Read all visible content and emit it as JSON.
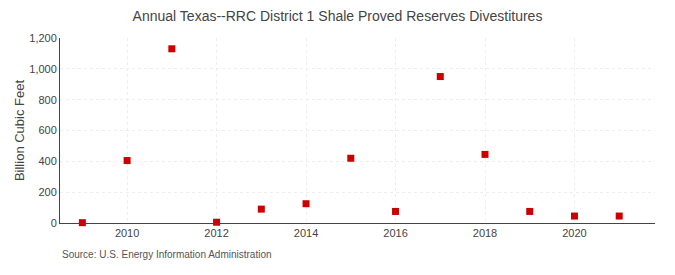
{
  "chart_data": {
    "type": "scatter",
    "title": "Annual Texas--RRC District 1 Shale Proved Reserves Divestitures",
    "ylabel": "Billion Cubic Feet",
    "annotations": [
      "Source: U.S. Energy Information Administration"
    ],
    "x": [
      2009,
      2010,
      2011,
      2012,
      2013,
      2014,
      2015,
      2016,
      2017,
      2018,
      2019,
      2020,
      2021
    ],
    "values": [
      2,
      405,
      1130,
      5,
      90,
      125,
      420,
      75,
      950,
      445,
      75,
      45,
      45
    ],
    "color": "#cc0000",
    "marker": "square",
    "xlim": [
      2008.5,
      2021.8
    ],
    "ylim": [
      0,
      1200
    ],
    "xticks": [
      2010,
      2012,
      2014,
      2016,
      2018,
      2020
    ],
    "yticks": [
      0,
      200,
      400,
      600,
      800,
      {
        "value": 1000,
        "label": "1,000"
      },
      {
        "value": 1200,
        "label": "1,200"
      }
    ],
    "grid": true
  }
}
